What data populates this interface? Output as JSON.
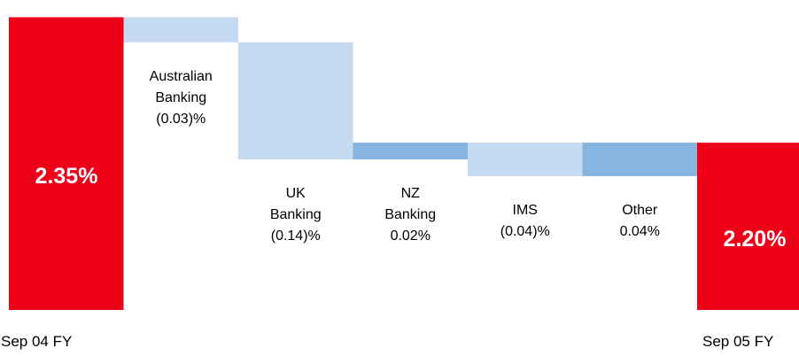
{
  "chart_data": {
    "type": "waterfall",
    "categories": [
      "Sep 04 FY",
      "Australian\nBanking",
      "UK\nBanking",
      "NZ\nBanking",
      "IMS",
      "Other",
      "Sep 05 FY"
    ],
    "values": [
      2.35,
      -0.03,
      -0.14,
      0.02,
      -0.04,
      0.04,
      2.2
    ],
    "value_labels": [
      "2.35%",
      "(0.03)%",
      "(0.14)%",
      "0.02%",
      "(0.04)%",
      "0.04%",
      "2.20%"
    ],
    "measure": [
      "total",
      "relative",
      "relative",
      "relative",
      "relative",
      "relative",
      "total"
    ],
    "ylim": [
      2.0,
      2.36
    ],
    "total_color": "#ee0018",
    "decrease_color": "#c5daf0",
    "increase_color": "#86b5df"
  }
}
